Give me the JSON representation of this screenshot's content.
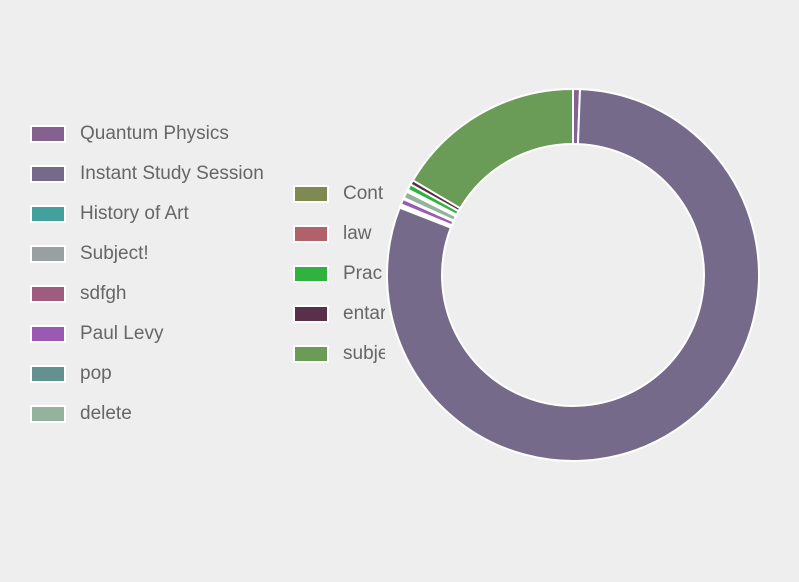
{
  "chart_data": {
    "type": "pie",
    "variant": "doughnut",
    "legend_position": "left",
    "series": [
      {
        "name": "Quantum Physics",
        "value": 0.6,
        "color": "#84618f"
      },
      {
        "name": "Instant Study Session",
        "value": 80.3,
        "color": "#766a8b"
      },
      {
        "name": "History of Art",
        "value": 0.1,
        "color": "#43a09c"
      },
      {
        "name": "Subject!",
        "value": 0.1,
        "color": "#9aa0a0"
      },
      {
        "name": "sdfgh",
        "value": 0.1,
        "color": "#a05c7e"
      },
      {
        "name": "Paul Levy",
        "value": 0.5,
        "color": "#9a59b3"
      },
      {
        "name": "pop",
        "value": 0.1,
        "color": "#629190"
      },
      {
        "name": "delete",
        "value": 0.6,
        "color": "#94b39c"
      },
      {
        "name": "Cont",
        "value": 0.1,
        "color": "#7e8a51"
      },
      {
        "name": "law",
        "value": 0.1,
        "color": "#b0616a"
      },
      {
        "name": "Prac",
        "value": 0.5,
        "color": "#2fb23e"
      },
      {
        "name": "entar",
        "value": 0.4,
        "color": "#593049"
      },
      {
        "name": "subje",
        "value": 16.5,
        "color": "#6a9c57"
      }
    ]
  }
}
